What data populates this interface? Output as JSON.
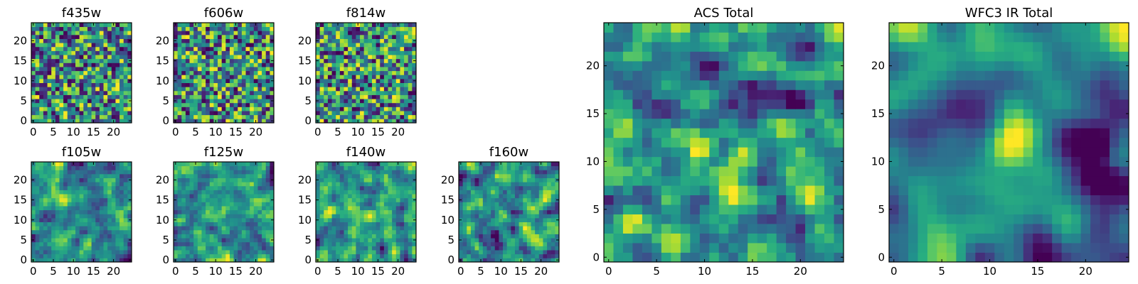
{
  "figure": {
    "colormap": "viridis",
    "colors": {
      "low": "#440154",
      "mid": "#21918c",
      "high": "#fde725",
      "frame": "#000000"
    }
  },
  "chart_data": [
    {
      "type": "heatmap",
      "title": "f435w",
      "xticks": [
        0,
        5,
        10,
        15,
        20
      ],
      "yticks": [
        0,
        5,
        10,
        15,
        20
      ],
      "xlim": [
        -0.5,
        24.5
      ],
      "ylim": [
        -0.5,
        24.5
      ],
      "grid_size": 25,
      "seed": 11,
      "smooth": 0,
      "hotspots": []
    },
    {
      "type": "heatmap",
      "title": "f606w",
      "xticks": [
        0,
        5,
        10,
        15,
        20
      ],
      "yticks": [
        0,
        5,
        10,
        15,
        20
      ],
      "xlim": [
        -0.5,
        24.5
      ],
      "ylim": [
        -0.5,
        24.5
      ],
      "grid_size": 25,
      "seed": 23,
      "smooth": 0,
      "hotspots": []
    },
    {
      "type": "heatmap",
      "title": "f814w",
      "xticks": [
        0,
        5,
        10,
        15,
        20
      ],
      "yticks": [
        0,
        5,
        10,
        15,
        20
      ],
      "xlim": [
        -0.5,
        24.5
      ],
      "ylim": [
        -0.5,
        24.5
      ],
      "grid_size": 25,
      "seed": 37,
      "smooth": 0,
      "hotspots": []
    },
    {
      "type": "heatmap",
      "title": "f105w",
      "xticks": [
        0,
        5,
        10,
        15,
        20
      ],
      "yticks": [
        0,
        5,
        10,
        15,
        20
      ],
      "xlim": [
        -0.5,
        24.5
      ],
      "ylim": [
        -0.5,
        24.5
      ],
      "grid_size": 25,
      "seed": 41,
      "smooth": 1,
      "hotspots": []
    },
    {
      "type": "heatmap",
      "title": "f125w",
      "xticks": [
        0,
        5,
        10,
        15,
        20
      ],
      "yticks": [
        0,
        5,
        10,
        15,
        20
      ],
      "xlim": [
        -0.5,
        24.5
      ],
      "ylim": [
        -0.5,
        24.5
      ],
      "grid_size": 25,
      "seed": 53,
      "smooth": 1,
      "hotspots": []
    },
    {
      "type": "heatmap",
      "title": "f140w",
      "xticks": [
        0,
        5,
        10,
        15,
        20
      ],
      "yticks": [
        0,
        5,
        10,
        15,
        20
      ],
      "xlim": [
        -0.5,
        24.5
      ],
      "ylim": [
        -0.5,
        24.5
      ],
      "grid_size": 25,
      "seed": 67,
      "smooth": 1,
      "hotspots": []
    },
    {
      "type": "heatmap",
      "title": "f160w",
      "xticks": [
        0,
        5,
        10,
        15,
        20
      ],
      "yticks": [
        0,
        5,
        10,
        15,
        20
      ],
      "xlim": [
        -0.5,
        24.5
      ],
      "ylim": [
        -0.5,
        24.5
      ],
      "grid_size": 25,
      "seed": 79,
      "smooth": 1,
      "hotspots": []
    },
    {
      "type": "heatmap",
      "title": "ACS Total",
      "xticks": [
        0,
        5,
        10,
        15,
        20
      ],
      "yticks": [
        0,
        5,
        10,
        15,
        20
      ],
      "xlim": [
        -0.5,
        24.5
      ],
      "ylim": [
        -0.5,
        24.5
      ],
      "grid_size": 25,
      "seed": 97,
      "smooth": 1,
      "hotspots": [
        [
          13,
          9,
          1.6,
          0.35
        ]
      ]
    },
    {
      "type": "heatmap",
      "title": "WFC3 IR Total",
      "xticks": [
        0,
        5,
        10,
        15,
        20
      ],
      "yticks": [
        0,
        5,
        10,
        15,
        20
      ],
      "xlim": [
        -0.5,
        24.5
      ],
      "ylim": [
        -0.5,
        24.5
      ],
      "grid_size": 25,
      "seed": 101,
      "smooth": 3,
      "hotspots": [
        [
          14.5,
          20.5,
          2.2,
          0.55
        ],
        [
          12.5,
          13,
          1.8,
          0.3
        ],
        [
          1.5,
          24,
          1.6,
          0.45
        ],
        [
          21,
          11.5,
          1.2,
          -0.7
        ],
        [
          21.5,
          8.5,
          1.0,
          -0.6
        ],
        [
          23.5,
          6,
          2.5,
          -0.35
        ],
        [
          22,
          15,
          2.5,
          -0.3
        ]
      ]
    }
  ]
}
